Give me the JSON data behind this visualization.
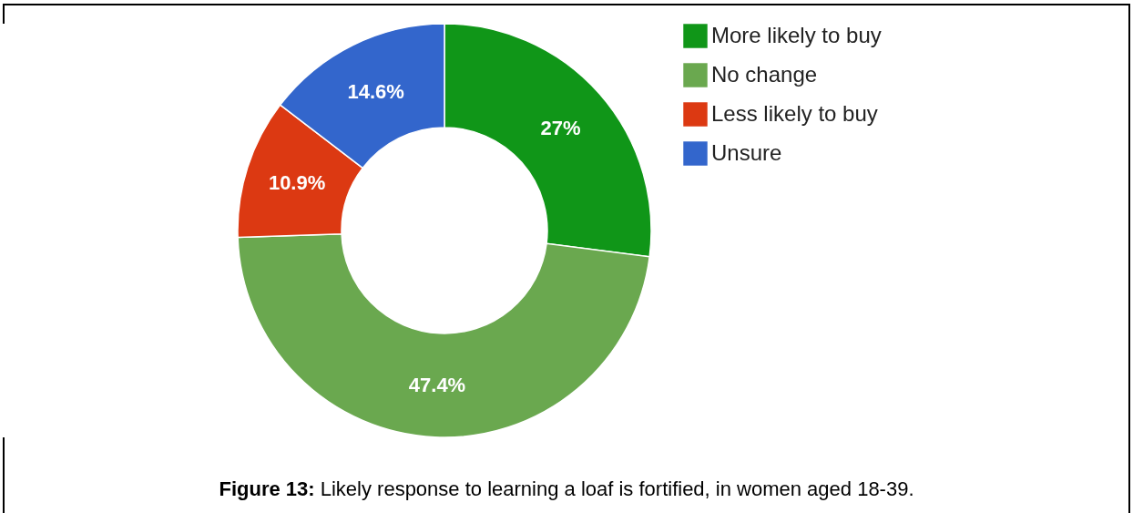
{
  "chart_data": {
    "type": "donut",
    "categories": [
      "More likely to buy",
      "No change",
      "Less likely to buy",
      "Unsure"
    ],
    "values": [
      27,
      47.4,
      10.9,
      14.6
    ],
    "colors": [
      "#109618",
      "#6aa84f",
      "#dc3912",
      "#3366cc"
    ],
    "value_labels": [
      "27%",
      "47.4%",
      "10.9%",
      "14.6%"
    ],
    "legend": "top right",
    "annotations": [
      "Figure 13: Likely response to learning a loaf is fortified, in women aged 18-39."
    ]
  }
}
